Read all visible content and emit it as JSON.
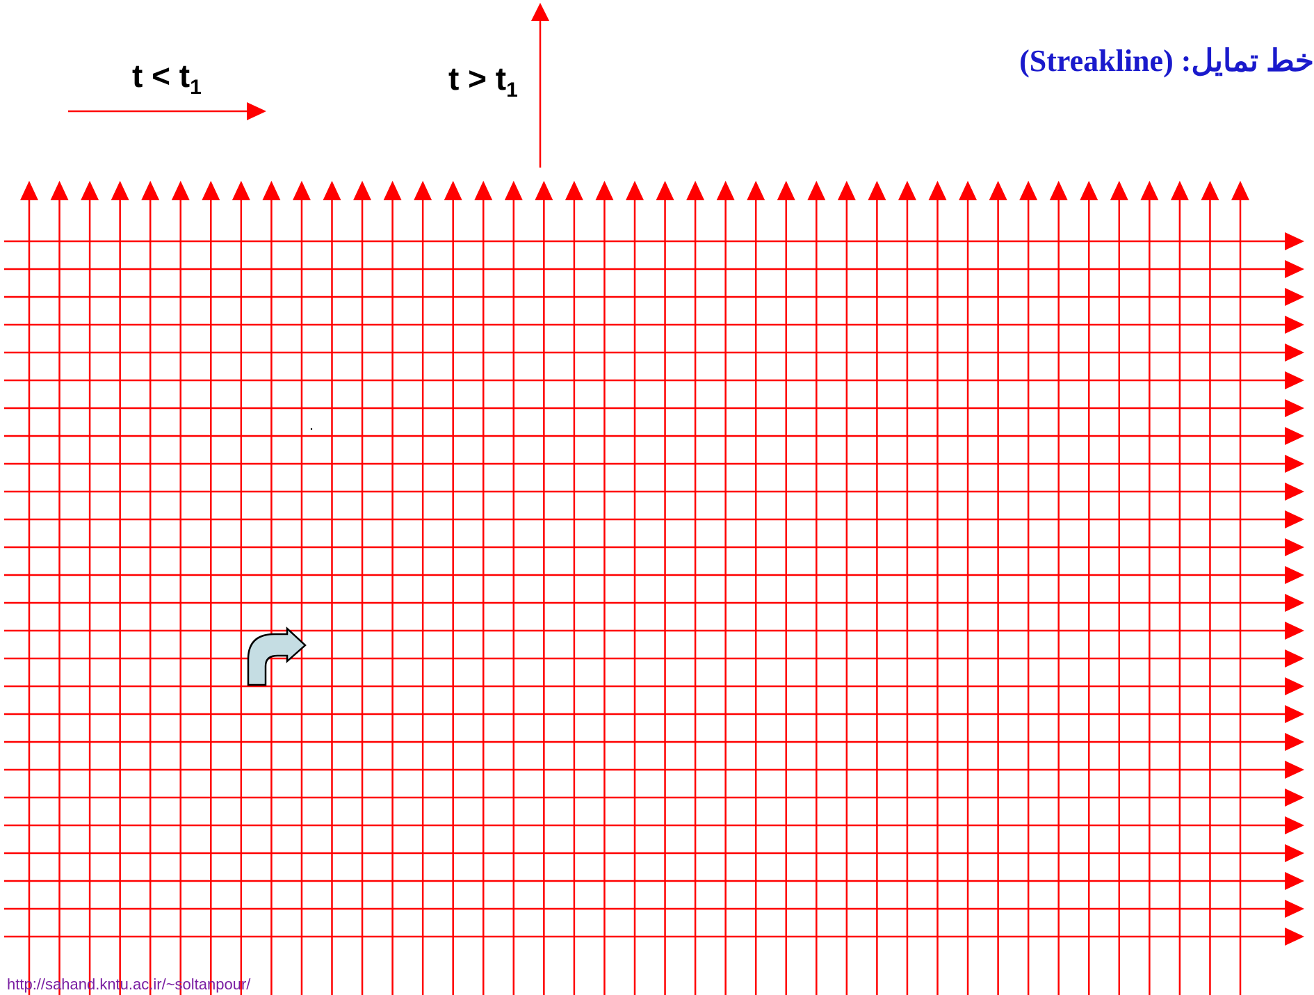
{
  "title": {
    "arabic": "خط تمایل",
    "separator": ":",
    "english": "(Streakline)",
    "color": "#1a1acc"
  },
  "labels": {
    "before": {
      "lhs": "t <",
      "var": "t",
      "sub": "1"
    },
    "after": {
      "lhs": "t >",
      "var": "t",
      "sub": "1"
    }
  },
  "footer": {
    "url": "http://sahand.kntu.ac.ir/~soltanpour/",
    "color": "#7a1fa2"
  },
  "colors": {
    "grid": "#ff0000",
    "curved_arrow_fill": "#c5dde3",
    "curved_arrow_stroke": "#000000"
  },
  "grid": {
    "vertical_lines": 41,
    "horizontal_lines": 26
  },
  "icons": {
    "curved_arrow": "curved-turn-right-arrow"
  }
}
